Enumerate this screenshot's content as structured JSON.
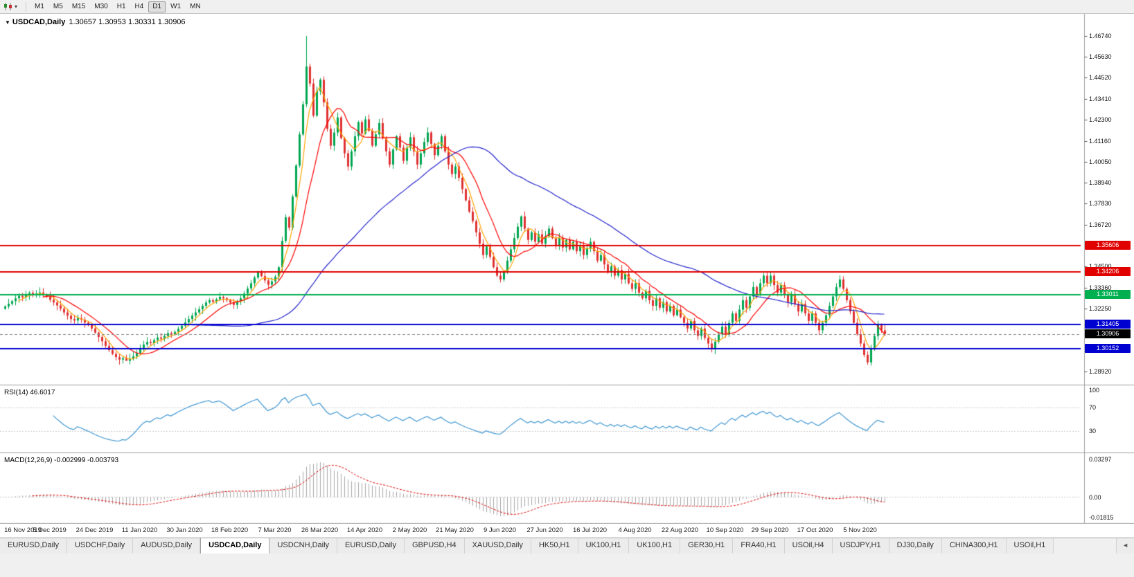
{
  "icons": {
    "chart_dropdown_caret": "▾",
    "title_collapse": "▼",
    "tab_scroll_left": "◄"
  },
  "toolbar": {
    "timeframes": [
      "M1",
      "M5",
      "M15",
      "M30",
      "H1",
      "H4",
      "D1",
      "W1",
      "MN"
    ],
    "active_index": 6
  },
  "chart": {
    "symbol_title": "USDCAD,Daily",
    "ohlc_text": "1.30657 1.30953 1.30331 1.30906"
  },
  "rsi": {
    "label": "RSI(14) 46.6017"
  },
  "macd": {
    "label": "MACD(12,26,9) -0.002999 -0.003793"
  },
  "tabs": {
    "active_index": 3,
    "items": [
      "EURUSD,Daily",
      "USDCHF,Daily",
      "AUDUSD,Daily",
      "USDCAD,Daily",
      "USDCNH,Daily",
      "EURUSD,Daily",
      "GBPUSD,H4",
      "XAUUSD,Daily",
      "HK50,H1",
      "UK100,H1",
      "UK100,H1",
      "GER30,H1",
      "FRA40,H1",
      "USOil,H4",
      "USDJPY,H1",
      "DJ30,Daily",
      "CHINA300,H1",
      "USOil,H1"
    ]
  },
  "chart_data": {
    "type": "candlestick",
    "symbol": "USDCAD",
    "timeframe": "Daily",
    "current_bar": {
      "open": 1.30657,
      "high": 1.30953,
      "low": 1.30331,
      "close": 1.30906
    },
    "y_range": [
      1.283,
      1.478
    ],
    "y_axis_ticks": [
      1.4674,
      1.4563,
      1.4452,
      1.4341,
      1.423,
      1.4116,
      1.4005,
      1.3894,
      1.3783,
      1.3672,
      1.345,
      1.3336,
      1.3225,
      1.2892
    ],
    "x_labels": [
      "16 Nov 2019",
      "5 Dec 2019",
      "24 Dec 2019",
      "11 Jan 2020",
      "30 Jan 2020",
      "18 Feb 2020",
      "7 Mar 2020",
      "26 Mar 2020",
      "14 Apr 2020",
      "2 May 2020",
      "21 May 2020",
      "9 Jun 2020",
      "27 Jun 2020",
      "16 Jul 2020",
      "4 Aug 2020",
      "22 Aug 2020",
      "10 Sep 2020",
      "29 Sep 2020",
      "17 Oct 2020",
      "5 Nov 2020"
    ],
    "label_every": 13,
    "candle_spacing_px": 5,
    "closes": [
      1.3238,
      1.3252,
      1.3266,
      1.3281,
      1.3294,
      1.3287,
      1.3301,
      1.331,
      1.3298,
      1.3306,
      1.3312,
      1.3297,
      1.3289,
      1.3273,
      1.3259,
      1.3243,
      1.3226,
      1.3206,
      1.3189,
      1.3171,
      1.3163,
      1.3176,
      1.3168,
      1.3152,
      1.3139,
      1.3121,
      1.3099,
      1.3076,
      1.3053,
      1.3029,
      1.3006,
      1.2986,
      1.2969,
      1.2956,
      1.2963,
      1.2949,
      1.2959,
      1.2973,
      1.2991,
      1.3013,
      1.3036,
      1.3049,
      1.3043,
      1.3059,
      1.3073,
      1.3066,
      1.3081,
      1.3096,
      1.3089,
      1.3103,
      1.3119,
      1.3136,
      1.3153,
      1.3171,
      1.3189,
      1.3206,
      1.3223,
      1.3241,
      1.3259,
      1.3271,
      1.3263,
      1.3276,
      1.3289,
      1.3281,
      1.3271,
      1.3259,
      1.3246,
      1.3263,
      1.3281,
      1.3306,
      1.3333,
      1.3361,
      1.3391,
      1.3421,
      1.3399,
      1.3376,
      1.3353,
      1.3371,
      1.3396,
      1.3446,
      1.3586,
      1.3711,
      1.3656,
      1.3821,
      1.3986,
      1.4151,
      1.4311,
      1.4511,
      1.4421,
      1.4251,
      1.4381,
      1.4441,
      1.4321,
      1.4181,
      1.4091,
      1.4161,
      1.4241,
      1.4131,
      1.4051,
      1.3981,
      1.4061,
      1.4141,
      1.4216,
      1.4156,
      1.4231,
      1.4171,
      1.4091,
      1.4151,
      1.4211,
      1.4131,
      1.4061,
      1.3991,
      1.4071,
      1.4141,
      1.4081,
      1.4011,
      1.4081,
      1.4136,
      1.4061,
      1.3991,
      1.4051,
      1.4111,
      1.4161,
      1.4101,
      1.4041,
      1.4091,
      1.4141,
      1.4061,
      1.3991,
      1.3941,
      1.3981,
      1.3921,
      1.3861,
      1.3801,
      1.3741,
      1.3691,
      1.3631,
      1.3571,
      1.3511,
      1.3556,
      1.3501,
      1.3446,
      1.3401,
      1.3381,
      1.3421,
      1.3481,
      1.3541,
      1.3601,
      1.3661,
      1.3716,
      1.3651,
      1.3591,
      1.3631,
      1.3581,
      1.3621,
      1.3571,
      1.3611,
      1.3651,
      1.3601,
      1.3561,
      1.3601,
      1.3551,
      1.3591,
      1.3541,
      1.3581,
      1.3531,
      1.3561,
      1.3511,
      1.3546,
      1.3581,
      1.3531,
      1.3481,
      1.3511,
      1.3461,
      1.3421,
      1.3451,
      1.3401,
      1.3431,
      1.3381,
      1.3411,
      1.3361,
      1.3331,
      1.3361,
      1.3311,
      1.3281,
      1.3321,
      1.3271,
      1.3241,
      1.3281,
      1.3231,
      1.3261,
      1.3211,
      1.3241,
      1.3191,
      1.3221,
      1.3181,
      1.3151,
      1.3121,
      1.3161,
      1.3111,
      1.3081,
      1.3121,
      1.3071,
      1.3041,
      1.3011,
      1.3051,
      1.3091,
      1.3131,
      1.3091,
      1.3151,
      1.3201,
      1.3161,
      1.3221,
      1.3271,
      1.3231,
      1.3291,
      1.3341,
      1.3301,
      1.3361,
      1.3401,
      1.3361,
      1.3401,
      1.3351,
      1.3311,
      1.3351,
      1.3301,
      1.3261,
      1.3301,
      1.3251,
      1.3211,
      1.3251,
      1.3201,
      1.3161,
      1.3201,
      1.3151,
      1.3111,
      1.3151,
      1.3191,
      1.3241,
      1.3291,
      1.3341,
      1.3381,
      1.3331,
      1.3271,
      1.3211,
      1.3151,
      1.3091,
      1.3041,
      1.2981,
      1.2941,
      1.3011,
      1.3081,
      1.3141,
      1.3111,
      1.30906
    ],
    "extremes": {
      "35": {
        "low": 1.2952
      },
      "87": {
        "high": 1.4674
      },
      "149": {
        "high": 1.3721
      },
      "204": {
        "low": 1.2994
      },
      "249": {
        "low": 1.2928
      }
    },
    "levels": [
      {
        "value": 1.35606,
        "color": "#E00000"
      },
      {
        "value": 1.34206,
        "color": "#E00000"
      },
      {
        "value": 1.33011,
        "color": "#00B050"
      },
      {
        "value": 1.31405,
        "color": "#0000D0"
      },
      {
        "value": 1.30152,
        "color": "#0000D0"
      }
    ],
    "current_price": {
      "value": 1.30906,
      "tag_color": "#000000"
    },
    "overlays": [
      {
        "name": "ma-fast",
        "period": 5,
        "color": "#FFA500"
      },
      {
        "name": "ma-mid",
        "period": 12,
        "color": "#FF0000"
      },
      {
        "name": "ma-slow",
        "period": 55,
        "color": "#2222CC"
      }
    ],
    "rsi": {
      "period": 14,
      "value": 46.6017,
      "axis_labels": [
        100,
        70,
        30
      ],
      "color": "#3E96D2"
    },
    "macd": {
      "fast": 12,
      "slow": 26,
      "signal_period": 9,
      "value": -0.002999,
      "signal_value": -0.003793,
      "axis_labels": [
        "0.03297",
        "0.00",
        "-0.01815"
      ],
      "range": [
        -0.019,
        0.0335
      ],
      "histogram_color": "#A8A8A8",
      "signal_color": "#E00000"
    },
    "colors": {
      "up": "#00A651",
      "down": "#E03131",
      "level_dash": "#C8C8C8"
    }
  }
}
